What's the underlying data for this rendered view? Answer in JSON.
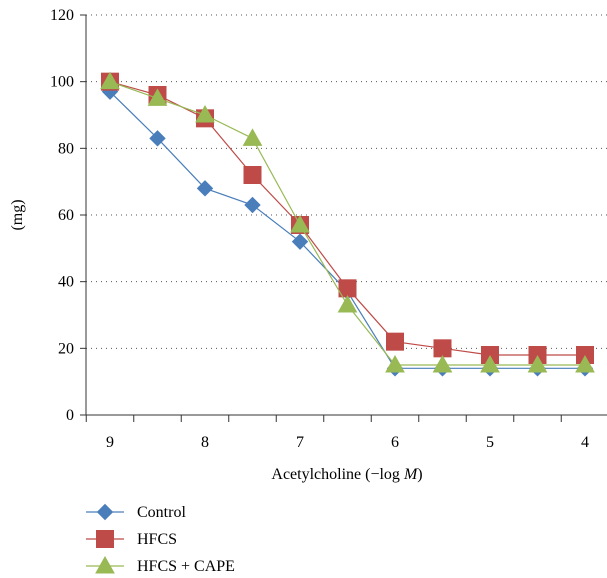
{
  "chart_data": {
    "type": "line",
    "title": "",
    "xlabel": "Acetylcholine (−log M)",
    "xlabel_parts": {
      "prefix": "Acetylcholine (−log ",
      "italic": "M",
      "suffix": ")"
    },
    "ylabel": "(mg)",
    "categories": [
      "9",
      "8.5",
      "8",
      "7.5",
      "7",
      "6.5",
      "6",
      "5.5",
      "5",
      "4.5",
      "4"
    ],
    "xtick_labels": [
      "9",
      "8",
      "7",
      "6",
      "5",
      "4"
    ],
    "ytick_labels": [
      "0",
      "20",
      "40",
      "60",
      "80",
      "100",
      "120"
    ],
    "ylim": [
      0,
      120
    ],
    "grid": "horizontal dotted",
    "legend_position": "bottom-left",
    "series": [
      {
        "name": "Control",
        "color": "#4a7ebb",
        "marker": "diamond",
        "values": [
          97,
          83,
          68,
          63,
          52,
          37,
          14,
          14,
          14,
          14,
          14
        ]
      },
      {
        "name": "HFCS",
        "color": "#be4b48",
        "marker": "square",
        "values": [
          100,
          96,
          89,
          72,
          57,
          38,
          22,
          20,
          18,
          18,
          18
        ]
      },
      {
        "name": "HFCS + CAPE",
        "color": "#98b954",
        "marker": "triangle",
        "values": [
          100,
          95,
          90,
          83,
          57,
          33,
          15,
          15,
          15,
          15,
          15
        ]
      }
    ]
  }
}
